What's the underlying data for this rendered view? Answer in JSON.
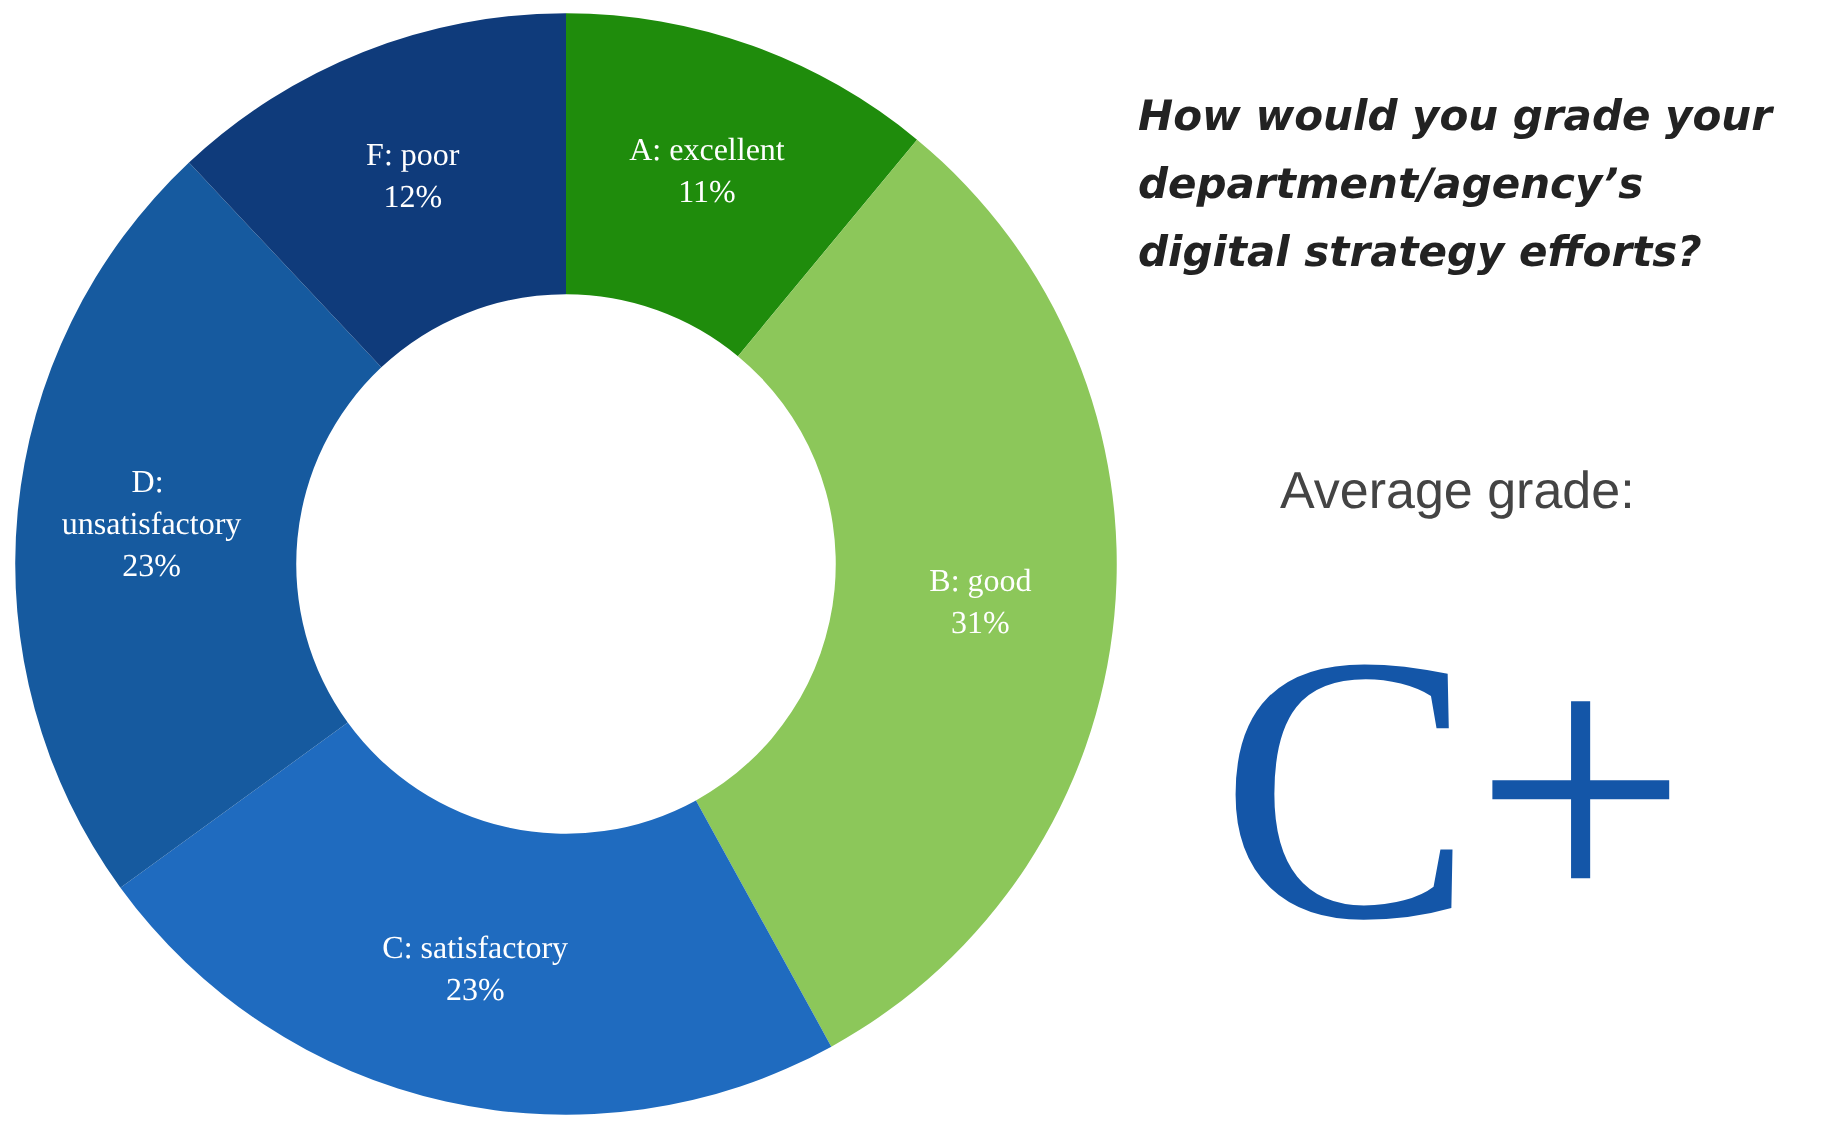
{
  "chart_data": {
    "type": "donut",
    "title": "How would you grade your department/agency’s digital strategy efforts?",
    "categories": [
      "A: excellent",
      "B: good",
      "C: satisfactory",
      "D: unsatisfactory",
      "F: poor"
    ],
    "values": [
      11,
      31,
      23,
      23,
      12
    ],
    "value_labels": [
      "11%",
      "31%",
      "23%",
      "23%",
      "12%"
    ],
    "colors": [
      "#1f8c0c",
      "#8cc75a",
      "#1f6bbf",
      "#165a9f",
      "#0f3b7b"
    ],
    "annotations": [
      "Average grade:",
      "C+"
    ],
    "legend": false
  }
}
